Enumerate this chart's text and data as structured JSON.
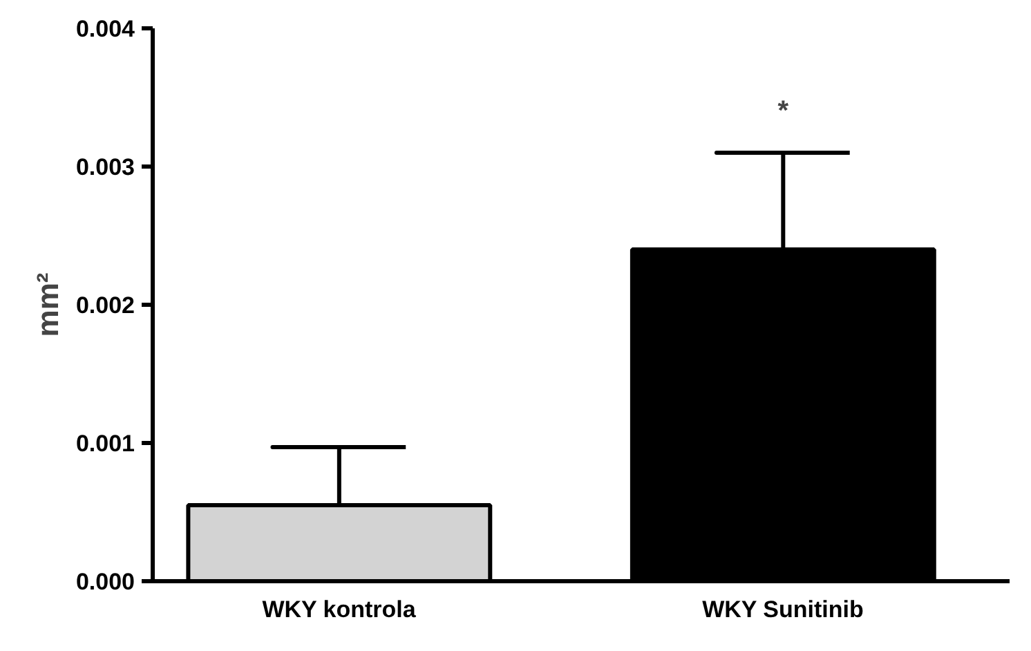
{
  "chart_data": {
    "type": "bar",
    "ylabel": "mm²",
    "categories": [
      "WKY kontrola",
      "WKY Sunitinib"
    ],
    "values": [
      0.00055,
      0.0024
    ],
    "colors": [
      "#d3d3d3",
      "#000000"
    ],
    "errors": [
      [
        0.00055,
        0.00097
      ],
      [
        0.0024,
        0.0031
      ]
    ],
    "ylim": [
      0,
      0.004
    ],
    "yticks": [
      {
        "value": 0,
        "label": "0.000"
      },
      {
        "value": 0.001,
        "label": "0.001"
      },
      {
        "value": 0.002,
        "label": "0.002"
      },
      {
        "value": 0.003,
        "label": "0.003"
      },
      {
        "value": 0.004,
        "label": "0.004"
      }
    ],
    "annotations": [
      "*"
    ],
    "grid": false
  }
}
